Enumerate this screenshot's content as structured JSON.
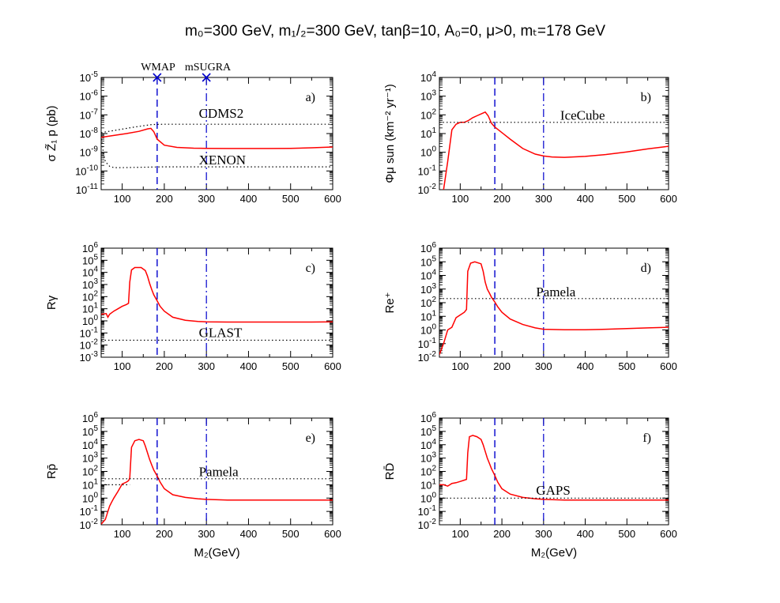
{
  "title": "m₀=300 GeV, m₁/₂=300 GeV, tanβ=10, A₀=0, μ>0, mₜ=178 GeV",
  "colors": {
    "curve": "#ff0000",
    "wmap_line": "#0000cc",
    "msugra_line": "#0000cc",
    "reference": "#000000"
  },
  "markers": {
    "wmap_label": "WMAP",
    "msugra_label": "mSUGRA",
    "icon": "x-mark-icon"
  },
  "chart_data": [
    {
      "type": "line",
      "tag": "a)",
      "ylabel": "σ Z̃₁ p (pb)",
      "xlabel": "",
      "log_y": true,
      "xlim": [
        50,
        600
      ],
      "ylim_exp": [
        -11,
        -5
      ],
      "xticks": [
        100,
        200,
        300,
        400,
        500,
        600
      ],
      "xticklabels": [
        "100",
        "200",
        "300",
        "400",
        "500",
        "600"
      ],
      "ytick_exp": [
        -11,
        -10,
        -9,
        -8,
        -7,
        -6,
        -5
      ],
      "wmap_x": 183,
      "msugra_x": 300,
      "series": [
        {
          "style": "signal",
          "x": [
            50,
            80,
            110,
            140,
            160,
            168,
            175,
            183,
            200,
            230,
            270,
            300,
            350,
            400,
            450,
            500,
            550,
            600
          ],
          "logy": [
            -8.2,
            -8.1,
            -8.0,
            -7.88,
            -7.75,
            -7.72,
            -7.9,
            -8.3,
            -8.62,
            -8.74,
            -8.78,
            -8.79,
            -8.8,
            -8.8,
            -8.8,
            -8.79,
            -8.76,
            -8.72
          ]
        },
        {
          "style": "ref-dotted",
          "label": "CDMS2",
          "x": [
            50,
            90,
            130,
            170,
            200,
            250,
            300,
            400,
            500,
            600
          ],
          "logy": [
            -7.95,
            -7.8,
            -7.65,
            -7.52,
            -7.5,
            -7.5,
            -7.5,
            -7.5,
            -7.5,
            -7.5
          ]
        },
        {
          "style": "ref-dotted",
          "label": "XENON",
          "x": [
            50,
            55,
            60,
            70,
            80,
            100,
            150,
            200,
            300,
            400,
            500,
            600
          ],
          "logy": [
            -8.1,
            -9.0,
            -9.5,
            -9.75,
            -9.82,
            -9.82,
            -9.8,
            -9.78,
            -9.78,
            -9.78,
            -9.78,
            -9.78
          ]
        }
      ],
      "annotations": [
        {
          "text": "CDMS2",
          "x": 282,
          "logy": -7.15
        },
        {
          "text": "XENON",
          "x": 282,
          "logy": -9.65
        }
      ]
    },
    {
      "type": "line",
      "tag": "b)",
      "ylabel": "Φμ sun (km⁻² yr⁻¹)",
      "xlabel": "",
      "log_y": true,
      "xlim": [
        50,
        600
      ],
      "ylim_exp": [
        -2,
        4
      ],
      "xticks": [
        100,
        200,
        300,
        400,
        500,
        600
      ],
      "xticklabels": [
        "100",
        "200",
        "300",
        "400",
        "500",
        "600"
      ],
      "ytick_exp": [
        -2,
        -1,
        0,
        1,
        2,
        3,
        4
      ],
      "wmap_x": 183,
      "msugra_x": 300,
      "series": [
        {
          "style": "signal",
          "x": [
            60,
            70,
            80,
            90,
            100,
            110,
            120,
            130,
            140,
            150,
            160,
            167,
            175,
            183,
            200,
            220,
            250,
            280,
            300,
            320,
            350,
            400,
            450,
            500,
            550,
            600
          ],
          "logy": [
            -2.0,
            -0.5,
            1.2,
            1.5,
            1.6,
            1.6,
            1.7,
            1.85,
            1.95,
            2.05,
            2.15,
            1.95,
            1.55,
            1.35,
            1.05,
            0.7,
            0.2,
            -0.1,
            -0.2,
            -0.25,
            -0.27,
            -0.22,
            -0.12,
            0.02,
            0.18,
            0.32
          ]
        },
        {
          "style": "ref-dotted",
          "label": "IceCube",
          "x": [
            50,
            600
          ],
          "logy": [
            1.6,
            1.6
          ]
        }
      ],
      "annotations": [
        {
          "text": "IceCube",
          "x": 340,
          "logy": 1.75
        }
      ]
    },
    {
      "type": "line",
      "tag": "c)",
      "ylabel": "Rγ",
      "xlabel": "",
      "log_y": true,
      "xlim": [
        50,
        600
      ],
      "ylim_exp": [
        -3,
        6
      ],
      "xticks": [
        100,
        200,
        300,
        400,
        500,
        600
      ],
      "xticklabels": [
        "100",
        "200",
        "300",
        "400",
        "500",
        "600"
      ],
      "ytick_exp": [
        -3,
        -2,
        -1,
        0,
        1,
        2,
        3,
        4,
        5,
        6
      ],
      "wmap_x": 183,
      "msugra_x": 300,
      "series": [
        {
          "style": "signal",
          "x": [
            50,
            62,
            66,
            70,
            80,
            90,
            100,
            110,
            115,
            118,
            122,
            130,
            145,
            155,
            160,
            165,
            170,
            175,
            183,
            190,
            200,
            220,
            250,
            280,
            300,
            350,
            400,
            450,
            500,
            550,
            600
          ],
          "logy": [
            0.55,
            0.6,
            0.3,
            0.55,
            0.8,
            1.0,
            1.2,
            1.35,
            1.45,
            3.2,
            4.2,
            4.4,
            4.4,
            4.15,
            3.7,
            3.1,
            2.6,
            2.15,
            1.65,
            1.2,
            0.8,
            0.3,
            0.05,
            -0.05,
            -0.08,
            -0.1,
            -0.1,
            -0.1,
            -0.1,
            -0.1,
            -0.08
          ]
        },
        {
          "style": "ref-dotted",
          "label": "GLAST",
          "x": [
            50,
            600
          ],
          "logy": [
            -1.6,
            -1.6
          ]
        }
      ],
      "annotations": [
        {
          "text": "GLAST",
          "x": 282,
          "logy": -1.35
        }
      ]
    },
    {
      "type": "line",
      "tag": "d)",
      "ylabel": "Re⁺",
      "xlabel": "",
      "log_y": true,
      "xlim": [
        50,
        600
      ],
      "ylim_exp": [
        -2,
        6
      ],
      "xticks": [
        100,
        200,
        300,
        400,
        500,
        600
      ],
      "xticklabels": [
        "100",
        "200",
        "300",
        "400",
        "500",
        "600"
      ],
      "ytick_exp": [
        -2,
        -1,
        0,
        1,
        2,
        3,
        4,
        5,
        6
      ],
      "wmap_x": 183,
      "msugra_x": 300,
      "series": [
        {
          "style": "signal",
          "x": [
            50,
            60,
            70,
            80,
            90,
            100,
            110,
            115,
            118,
            125,
            135,
            150,
            155,
            160,
            165,
            170,
            175,
            183,
            190,
            200,
            220,
            250,
            280,
            300,
            350,
            400,
            450,
            500,
            550,
            600
          ],
          "logy": [
            -1.8,
            -1.0,
            0.0,
            0.2,
            0.9,
            1.1,
            1.3,
            1.5,
            4.3,
            4.9,
            5.0,
            4.85,
            4.3,
            3.5,
            3.0,
            2.7,
            2.4,
            2.05,
            1.7,
            1.3,
            0.8,
            0.4,
            0.15,
            0.05,
            0.02,
            0.02,
            0.05,
            0.1,
            0.15,
            0.2
          ]
        },
        {
          "style": "ref-dotted",
          "label": "Pamela",
          "x": [
            50,
            600
          ],
          "logy": [
            2.3,
            2.3
          ]
        }
      ],
      "annotations": [
        {
          "text": "Pamela",
          "x": 282,
          "logy": 2.45
        }
      ]
    },
    {
      "type": "line",
      "tag": "e)",
      "ylabel": "Rp̄",
      "xlabel": "M₂(GeV)",
      "log_y": true,
      "xlim": [
        50,
        600
      ],
      "ylim_exp": [
        -2,
        6
      ],
      "xticks": [
        100,
        200,
        300,
        400,
        500,
        600
      ],
      "xticklabels": [
        "100",
        "200",
        "300",
        "400",
        "500",
        "600"
      ],
      "ytick_exp": [
        -2,
        -1,
        0,
        1,
        2,
        3,
        4,
        5,
        6
      ],
      "wmap_x": 183,
      "msugra_x": 300,
      "series": [
        {
          "style": "signal",
          "x": [
            50,
            60,
            65,
            70,
            75,
            80,
            90,
            100,
            110,
            115,
            118,
            122,
            130,
            140,
            150,
            155,
            160,
            165,
            170,
            175,
            183,
            190,
            200,
            220,
            250,
            280,
            300,
            350,
            400,
            450,
            500,
            550,
            600
          ],
          "logy": [
            -1.95,
            -1.6,
            -1.1,
            -0.6,
            -0.3,
            0.0,
            0.5,
            1.05,
            1.2,
            1.3,
            1.5,
            3.8,
            4.3,
            4.4,
            4.3,
            3.9,
            3.4,
            2.9,
            2.5,
            2.1,
            1.65,
            1.2,
            0.7,
            0.25,
            0.05,
            -0.05,
            -0.1,
            -0.15,
            -0.15,
            -0.15,
            -0.15,
            -0.15,
            -0.15
          ]
        },
        {
          "style": "ref-dotted",
          "label": "Pamela",
          "x": [
            50,
            600
          ],
          "logy": [
            1.45,
            1.45
          ]
        },
        {
          "style": "ref-dotted",
          "label": "",
          "x": [
            50,
            118
          ],
          "logy": [
            1.0,
            1.0
          ]
        }
      ],
      "annotations": [
        {
          "text": "Pamela",
          "x": 282,
          "logy": 1.65
        }
      ]
    },
    {
      "type": "line",
      "tag": "f)",
      "ylabel": "RD̄",
      "xlabel": "M₂(GeV)",
      "log_y": true,
      "xlim": [
        50,
        600
      ],
      "ylim_exp": [
        -2,
        6
      ],
      "xticks": [
        100,
        200,
        300,
        400,
        500,
        600
      ],
      "xticklabels": [
        "100",
        "200",
        "300",
        "400",
        "500",
        "600"
      ],
      "ytick_exp": [
        -2,
        -1,
        0,
        1,
        2,
        3,
        4,
        5,
        6
      ],
      "wmap_x": 183,
      "msugra_x": 300,
      "series": [
        {
          "style": "signal",
          "x": [
            50,
            60,
            70,
            75,
            80,
            90,
            100,
            110,
            115,
            118,
            122,
            130,
            140,
            150,
            155,
            160,
            165,
            170,
            175,
            183,
            190,
            200,
            220,
            250,
            280,
            300,
            350,
            400,
            450,
            500,
            550,
            600
          ],
          "logy": [
            1.0,
            1.0,
            0.9,
            1.0,
            1.1,
            1.15,
            1.25,
            1.35,
            1.4,
            3.4,
            4.6,
            4.7,
            4.6,
            4.4,
            4.0,
            3.5,
            3.0,
            2.6,
            2.2,
            1.7,
            1.2,
            0.7,
            0.3,
            0.05,
            -0.05,
            -0.1,
            -0.15,
            -0.15,
            -0.15,
            -0.15,
            -0.15,
            -0.15
          ]
        },
        {
          "style": "ref-dotted",
          "label": "GAPS",
          "x": [
            50,
            600
          ],
          "logy": [
            0.0,
            0.0
          ]
        }
      ],
      "annotations": [
        {
          "text": "GAPS",
          "x": 282,
          "logy": 0.25
        }
      ]
    }
  ]
}
